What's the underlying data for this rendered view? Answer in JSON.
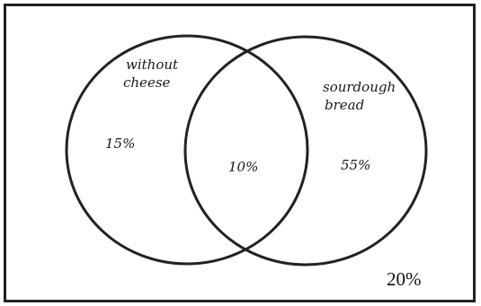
{
  "venn": {
    "set_a": {
      "label_line1": "without",
      "label_line2": "cheese",
      "only_value": "15%"
    },
    "set_b": {
      "label_line1": "sourdough",
      "label_line2": "bread",
      "only_value": "55%"
    },
    "intersection_value": "10%",
    "outside_value": "20%"
  },
  "colors": {
    "outline": "#222222",
    "background": "#ffffff"
  }
}
